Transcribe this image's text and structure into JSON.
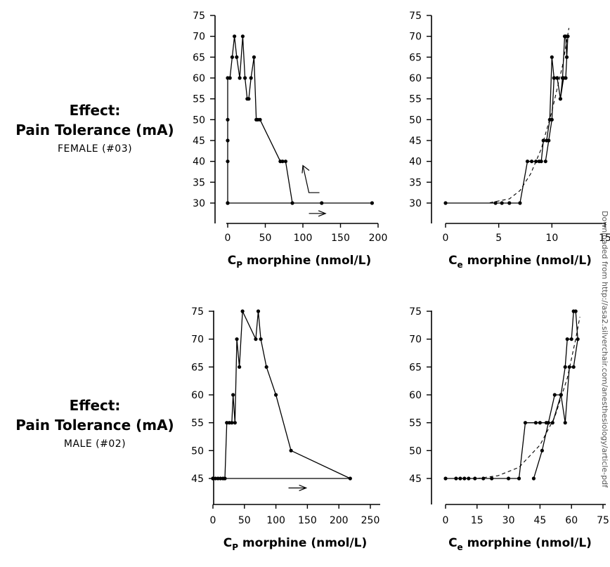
{
  "rows": [
    {
      "effect_label": "Effect:",
      "measure_label": "Pain Tolerance (mA)",
      "subject_label": "FEMALE (#03)"
    },
    {
      "effect_label": "Effect:",
      "measure_label": "Pain Tolerance (mA)",
      "subject_label": "MALE (#02)"
    }
  ],
  "watermark": "Downloaded from http://asa2.silverchair.com/anesthesiology/article-pdf",
  "chart_data": [
    {
      "type": "line",
      "xlabel": {
        "main": "C",
        "sub": "P",
        "rest": " morphine (nmol/L)"
      },
      "ylabel": "",
      "xlim": [
        0,
        200
      ],
      "ylim": [
        25,
        75
      ],
      "xticks": [
        0,
        50,
        100,
        150,
        200
      ],
      "yticks": [
        30,
        35,
        40,
        45,
        50,
        55,
        60,
        65,
        70,
        75
      ],
      "series": [
        {
          "x": [
            0,
            0,
            0,
            0,
            0,
            3,
            6,
            9,
            12,
            16,
            20,
            23,
            26,
            28,
            31,
            35,
            38,
            40,
            43,
            70,
            73,
            77,
            86,
            125,
            192,
            0
          ],
          "y": [
            30,
            40,
            45,
            50,
            60,
            60,
            65,
            70,
            65,
            60,
            70,
            60,
            55,
            55,
            60,
            65,
            50,
            50,
            50,
            40,
            40,
            40,
            30,
            30,
            30,
            30
          ]
        }
      ],
      "arrows": [
        {
          "from": [
            108,
            27.5
          ],
          "to": [
            130,
            27.5
          ],
          "head": "end"
        },
        {
          "from": [
            122,
            32.5
          ],
          "to": [
            108,
            32.5
          ],
          "via": [
            108,
            32.5
          ],
          "up_to": [
            100,
            39
          ],
          "head": "up"
        }
      ]
    },
    {
      "type": "line",
      "xlabel": {
        "main": "C",
        "sub": "e",
        "rest": " morphine (nmol/L)"
      },
      "ylabel": "",
      "xlim": [
        0,
        15
      ],
      "ylim": [
        25,
        75
      ],
      "xticks": [
        0,
        5,
        10,
        15
      ],
      "yticks": [
        30,
        35,
        40,
        45,
        50,
        55,
        60,
        65,
        70,
        75
      ],
      "series": [
        {
          "x": [
            0,
            4.7,
            5.3,
            6.0,
            7.0,
            7.7,
            8.1,
            8.5,
            8.8,
            9.0,
            9.2,
            9.5,
            9.8,
            10.0,
            10.2,
            10.5,
            10.8,
            11.0,
            11.2,
            11.3,
            11.4,
            11.5,
            11.3,
            11.1,
            10.8,
            10.5,
            10.2,
            10.0,
            9.7,
            9.4
          ],
          "y": [
            30,
            30,
            30,
            30,
            30,
            40,
            40,
            40,
            40,
            40,
            45,
            45,
            50,
            65,
            60,
            60,
            55,
            60,
            70,
            70,
            65,
            70,
            60,
            60,
            55,
            60,
            60,
            50,
            45,
            40
          ]
        }
      ],
      "fit": {
        "x": [
          0,
          4,
          6,
          7,
          8,
          9,
          10,
          11,
          11.6
        ],
        "y": [
          30,
          30,
          31,
          33,
          37,
          43,
          52,
          63,
          72
        ]
      }
    },
    {
      "type": "line",
      "xlabel": {
        "main": "C",
        "sub": "P",
        "rest": " morphine (nmol/L)"
      },
      "ylabel": "",
      "xlim": [
        0,
        250
      ],
      "ylim": [
        42,
        75
      ],
      "xticks": [
        0,
        50,
        100,
        150,
        200,
        250
      ],
      "yticks": [
        45,
        50,
        55,
        60,
        65,
        70,
        75
      ],
      "series": [
        {
          "x": [
            0,
            4,
            8,
            12,
            16,
            19,
            22,
            26,
            30,
            32,
            35,
            38,
            42,
            47,
            68,
            72,
            76,
            85,
            100,
            124,
            218,
            0
          ],
          "y": [
            45,
            45,
            45,
            45,
            45,
            45,
            55,
            55,
            55,
            60,
            55,
            70,
            65,
            75,
            70,
            75,
            70,
            65,
            60,
            50,
            45,
            45
          ]
        }
      ],
      "arrows": [
        {
          "from": [
            120,
            43.3
          ],
          "to": [
            148,
            43.3
          ],
          "head": "end"
        }
      ]
    },
    {
      "type": "line",
      "xlabel": {
        "main": "C",
        "sub": "e",
        "rest": " morphine (nmol/L)"
      },
      "ylabel": "",
      "xlim": [
        0,
        75
      ],
      "ylim": [
        42,
        75
      ],
      "xticks": [
        0,
        15,
        30,
        45,
        60,
        75
      ],
      "yticks": [
        45,
        50,
        55,
        60,
        65,
        70,
        75
      ],
      "series": [
        {
          "x": [
            0,
            5,
            7,
            9,
            11,
            14,
            18,
            22,
            30,
            35,
            38,
            43,
            45,
            48,
            51,
            55,
            57,
            58,
            60,
            61,
            62,
            63,
            61,
            59,
            57,
            55,
            52,
            49,
            46,
            42
          ],
          "y": [
            45,
            45,
            45,
            45,
            45,
            45,
            45,
            45,
            45,
            45,
            55,
            55,
            55,
            55,
            55,
            60,
            65,
            70,
            70,
            75,
            75,
            70,
            65,
            65,
            55,
            60,
            60,
            55,
            50,
            45
          ]
        }
      ],
      "fit": {
        "x": [
          0,
          15,
          25,
          35,
          45,
          52,
          58,
          62,
          64
        ],
        "y": [
          45,
          45,
          45.5,
          47,
          51,
          56,
          63,
          70,
          74
        ]
      }
    }
  ]
}
